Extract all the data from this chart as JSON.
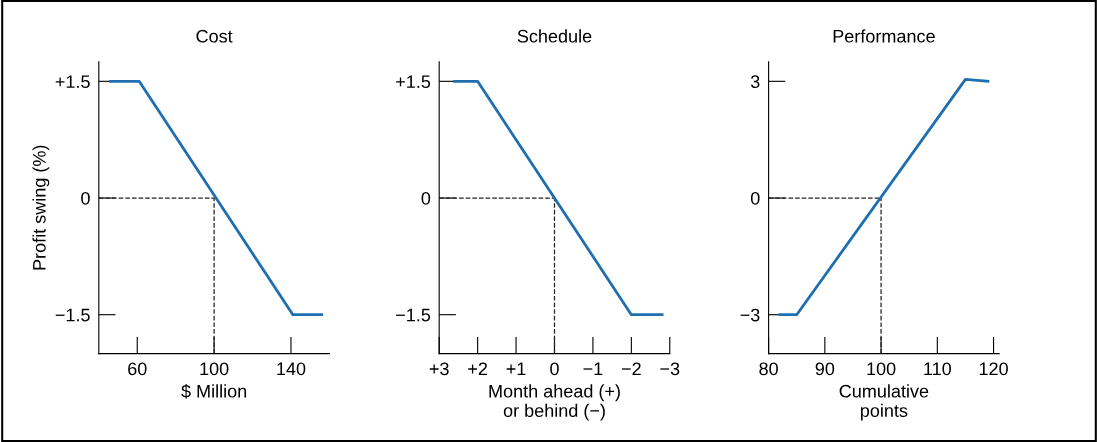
{
  "chart_data": [
    {
      "type": "line",
      "title": "Cost",
      "xlabel": "$ Million",
      "ylabel": "Profit swing (%)",
      "series": [
        {
          "color": "#1f6fb0",
          "x": [
            46,
            61,
            141,
            156
          ],
          "values": [
            1.5,
            1.5,
            -1.5,
            -1.5
          ]
        }
      ],
      "xlim": [
        40,
        160
      ],
      "xticks": [
        60,
        100,
        140
      ],
      "ylim": [
        -2,
        1.75
      ],
      "yticks": [
        {
          "value": -1.5,
          "label": "−1.5"
        },
        0,
        {
          "value": 1.5,
          "label": "+1.5"
        }
      ],
      "ref_lines": [
        {
          "axis": "x",
          "value": 100,
          "line_style": "dashed",
          "color": "#222222"
        },
        {
          "axis": "y",
          "value": 0,
          "line_style": "dashed",
          "color": "#222222"
        }
      ],
      "grid": false,
      "legend": false,
      "line_style": "solid",
      "marker": "none"
    },
    {
      "type": "line",
      "title": "Schedule",
      "xlabel": "Month ahead (+)\nor behind (−)",
      "series": [
        {
          "color": "#1f6fb0",
          "x": [
            2.6,
            2,
            -2,
            -2.8
          ],
          "values": [
            1.5,
            1.5,
            -1.5,
            -1.5
          ]
        }
      ],
      "xlim": [
        3,
        -3
      ],
      "xticks": [
        {
          "value": 3,
          "label": "+3"
        },
        {
          "value": 2,
          "label": "+2"
        },
        {
          "value": 1,
          "label": "+1"
        },
        0,
        {
          "value": -1,
          "label": "−1"
        },
        {
          "value": -2,
          "label": "−2"
        },
        {
          "value": -3,
          "label": "−3"
        }
      ],
      "ylim": [
        -2,
        1.75
      ],
      "yticks": [
        {
          "value": -1.5,
          "label": "−1.5"
        },
        0,
        {
          "value": 1.5,
          "label": "+1.5"
        }
      ],
      "ref_lines": [
        {
          "axis": "x",
          "value": 0,
          "line_style": "dashed",
          "color": "#222222"
        },
        {
          "axis": "y",
          "value": 0,
          "line_style": "dashed",
          "color": "#222222"
        }
      ],
      "grid": false,
      "legend": false,
      "line_style": "solid",
      "marker": "none"
    },
    {
      "type": "line",
      "title": "Performance",
      "xlabel": "Cumulative\npoints",
      "series": [
        {
          "color": "#1f6fb0",
          "x": [
            82,
            85,
            115,
            119
          ],
          "values": [
            -3,
            -3,
            3.05,
            3.0
          ]
        }
      ],
      "xlim": [
        80,
        121
      ],
      "xticks": [
        80,
        90,
        100,
        110,
        120
      ],
      "ylim": [
        -4,
        3.5
      ],
      "yticks": [
        {
          "value": -3,
          "label": "−3"
        },
        0,
        3
      ],
      "ref_lines": [
        {
          "axis": "x",
          "value": 100,
          "line_style": "dashed",
          "color": "#222222"
        },
        {
          "axis": "y",
          "value": 0,
          "line_style": "dashed",
          "color": "#222222"
        }
      ],
      "grid": false,
      "legend": false,
      "line_style": "solid",
      "marker": "none"
    }
  ]
}
